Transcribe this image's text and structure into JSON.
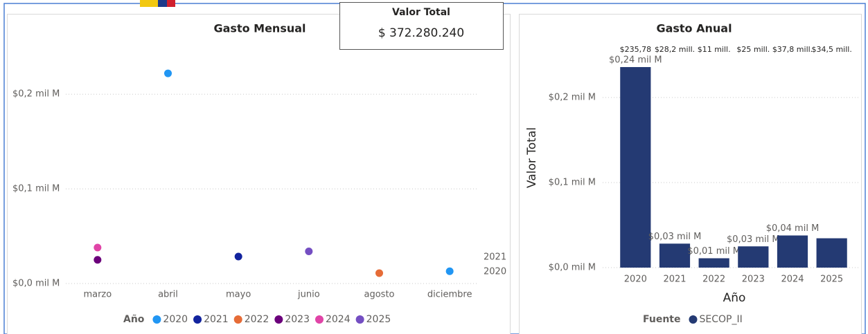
{
  "card": {
    "title": "Valor Total",
    "value": "$ 372.280.240"
  },
  "chart_data": [
    {
      "type": "scatter",
      "title": "Gasto Mensual",
      "categories": [
        "marzo",
        "abril",
        "mayo",
        "junio",
        "agosto",
        "diciembre"
      ],
      "legend_title": "Año",
      "series": [
        {
          "name": "2020",
          "color": "#2196f3",
          "values": [
            null,
            0.222,
            null,
            null,
            null,
            0.013
          ]
        },
        {
          "name": "2021",
          "color": "#12239e",
          "values": [
            null,
            null,
            0.0285,
            null,
            null,
            null
          ]
        },
        {
          "name": "2022",
          "color": "#e66c37",
          "values": [
            null,
            null,
            null,
            null,
            0.011,
            null
          ]
        },
        {
          "name": "2023",
          "color": "#6b007b",
          "values": [
            0.025,
            null,
            null,
            null,
            null,
            null
          ]
        },
        {
          "name": "2024",
          "color": "#e044a7",
          "values": [
            0.038,
            null,
            null,
            null,
            null,
            null
          ]
        },
        {
          "name": "2025",
          "color": "#744ec2",
          "values": [
            null,
            null,
            null,
            0.034,
            null,
            null
          ]
        }
      ],
      "annotations": [
        "2021",
        "2020"
      ],
      "ylim": [
        0,
        0.252
      ],
      "yticks": [
        {
          "value": 0,
          "label": "$0,0 mil M"
        },
        {
          "value": 0.1,
          "label": "$0,1 mil M"
        },
        {
          "value": 0.2,
          "label": "$0,2 mil M"
        }
      ],
      "grid": true
    },
    {
      "type": "bar",
      "title": "Gasto Anual",
      "xlabel": "Año",
      "ylabel": "Valor Total",
      "categories": [
        "2020",
        "2021",
        "2022",
        "2023",
        "2024",
        "2025"
      ],
      "legend_title": "Fuente",
      "series": [
        {
          "name": "SECOP_II",
          "color": "#243a73",
          "values": [
            0.23578,
            0.0282,
            0.011,
            0.025,
            0.0378,
            0.0345
          ],
          "value_labels": [
            "$0,24 mil M",
            "$0,03 mil M",
            "$0,01 mil M",
            "$0,03 mil M",
            "$0,04 mil M",
            null
          ],
          "top_labels": [
            "$235,78",
            "$28,2 mill.",
            "$11 mill.",
            "$25 mill.",
            "$37,8 mill.",
            "$34,5 mill."
          ]
        }
      ],
      "ylim": [
        0,
        0.25
      ],
      "yticks": [
        {
          "value": 0,
          "label": "$0,0 mil M"
        },
        {
          "value": 0.1,
          "label": "$0,1 mil M"
        },
        {
          "value": 0.2,
          "label": "$0,2 mil M"
        }
      ],
      "grid": true
    }
  ]
}
